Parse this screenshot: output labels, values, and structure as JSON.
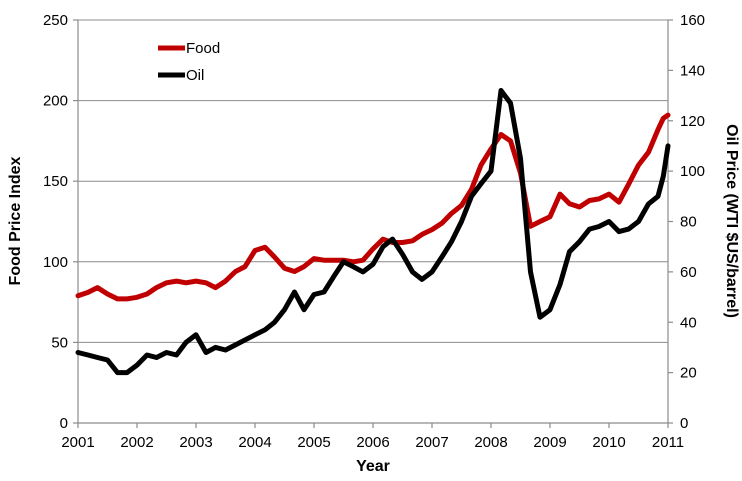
{
  "chart_data": {
    "type": "line",
    "title": "",
    "xlabel": "Year",
    "ylabel_left": "Food Price Index",
    "ylabel_right": "Oil Price (WTI $US/barrel)",
    "xlim": [
      2001,
      2011
    ],
    "ylim_left": [
      0,
      250
    ],
    "ylim_right": [
      0,
      160
    ],
    "x_ticks": [
      "2001",
      "2002",
      "2003",
      "2004",
      "2005",
      "2006",
      "2007",
      "2008",
      "2009",
      "2010",
      "2011"
    ],
    "y_ticks_left": [
      "0",
      "50",
      "100",
      "150",
      "200",
      "250"
    ],
    "y_ticks_right": [
      "0",
      "20",
      "40",
      "60",
      "80",
      "100",
      "120",
      "140",
      "160"
    ],
    "grid": "horizontal",
    "legend_position": "top-left",
    "series": [
      {
        "name": "Food",
        "axis": "left",
        "color": "#c00000",
        "points": [
          [
            2001.0,
            79
          ],
          [
            2001.17,
            81
          ],
          [
            2001.33,
            84
          ],
          [
            2001.5,
            80
          ],
          [
            2001.67,
            77
          ],
          [
            2001.83,
            77
          ],
          [
            2002.0,
            78
          ],
          [
            2002.17,
            80
          ],
          [
            2002.33,
            84
          ],
          [
            2002.5,
            87
          ],
          [
            2002.67,
            88
          ],
          [
            2002.83,
            87
          ],
          [
            2003.0,
            88
          ],
          [
            2003.17,
            87
          ],
          [
            2003.33,
            84
          ],
          [
            2003.5,
            88
          ],
          [
            2003.67,
            94
          ],
          [
            2003.83,
            97
          ],
          [
            2004.0,
            107
          ],
          [
            2004.17,
            109
          ],
          [
            2004.33,
            103
          ],
          [
            2004.5,
            96
          ],
          [
            2004.67,
            94
          ],
          [
            2004.83,
            97
          ],
          [
            2005.0,
            102
          ],
          [
            2005.17,
            101
          ],
          [
            2005.33,
            101
          ],
          [
            2005.5,
            101
          ],
          [
            2005.67,
            100
          ],
          [
            2005.83,
            101
          ],
          [
            2006.0,
            108
          ],
          [
            2006.17,
            114
          ],
          [
            2006.33,
            112
          ],
          [
            2006.5,
            112
          ],
          [
            2006.67,
            113
          ],
          [
            2006.83,
            117
          ],
          [
            2007.0,
            120
          ],
          [
            2007.17,
            124
          ],
          [
            2007.33,
            130
          ],
          [
            2007.5,
            135
          ],
          [
            2007.67,
            145
          ],
          [
            2007.83,
            160
          ],
          [
            2008.0,
            170
          ],
          [
            2008.17,
            179
          ],
          [
            2008.33,
            175
          ],
          [
            2008.5,
            155
          ],
          [
            2008.67,
            122
          ],
          [
            2008.83,
            125
          ],
          [
            2009.0,
            128
          ],
          [
            2009.17,
            142
          ],
          [
            2009.33,
            136
          ],
          [
            2009.5,
            134
          ],
          [
            2009.67,
            138
          ],
          [
            2009.83,
            139
          ],
          [
            2010.0,
            142
          ],
          [
            2010.17,
            137
          ],
          [
            2010.33,
            148
          ],
          [
            2010.5,
            160
          ],
          [
            2010.67,
            168
          ],
          [
            2010.83,
            182
          ],
          [
            2010.92,
            189
          ],
          [
            2011.0,
            191
          ]
        ]
      },
      {
        "name": "Oil",
        "axis": "right",
        "color": "#000000",
        "points": [
          [
            2001.0,
            28
          ],
          [
            2001.17,
            27
          ],
          [
            2001.33,
            26
          ],
          [
            2001.5,
            25
          ],
          [
            2001.67,
            20
          ],
          [
            2001.83,
            20
          ],
          [
            2002.0,
            23
          ],
          [
            2002.17,
            27
          ],
          [
            2002.33,
            26
          ],
          [
            2002.5,
            28
          ],
          [
            2002.67,
            27
          ],
          [
            2002.83,
            32
          ],
          [
            2003.0,
            35
          ],
          [
            2003.17,
            28
          ],
          [
            2003.33,
            30
          ],
          [
            2003.5,
            29
          ],
          [
            2003.67,
            31
          ],
          [
            2003.83,
            33
          ],
          [
            2004.0,
            35
          ],
          [
            2004.17,
            37
          ],
          [
            2004.33,
            40
          ],
          [
            2004.5,
            45
          ],
          [
            2004.67,
            52
          ],
          [
            2004.83,
            45
          ],
          [
            2005.0,
            51
          ],
          [
            2005.17,
            52
          ],
          [
            2005.33,
            58
          ],
          [
            2005.5,
            64
          ],
          [
            2005.67,
            62
          ],
          [
            2005.83,
            60
          ],
          [
            2006.0,
            63
          ],
          [
            2006.17,
            70
          ],
          [
            2006.33,
            73
          ],
          [
            2006.5,
            67
          ],
          [
            2006.67,
            60
          ],
          [
            2006.83,
            57
          ],
          [
            2007.0,
            60
          ],
          [
            2007.17,
            66
          ],
          [
            2007.33,
            72
          ],
          [
            2007.5,
            80
          ],
          [
            2007.67,
            90
          ],
          [
            2007.83,
            95
          ],
          [
            2008.0,
            100
          ],
          [
            2008.17,
            132
          ],
          [
            2008.33,
            127
          ],
          [
            2008.5,
            105
          ],
          [
            2008.67,
            60
          ],
          [
            2008.83,
            42
          ],
          [
            2009.0,
            45
          ],
          [
            2009.17,
            55
          ],
          [
            2009.33,
            68
          ],
          [
            2009.5,
            72
          ],
          [
            2009.67,
            77
          ],
          [
            2009.83,
            78
          ],
          [
            2010.0,
            80
          ],
          [
            2010.17,
            76
          ],
          [
            2010.33,
            77
          ],
          [
            2010.5,
            80
          ],
          [
            2010.67,
            87
          ],
          [
            2010.83,
            90
          ],
          [
            2010.92,
            98
          ],
          [
            2011.0,
            110
          ]
        ]
      }
    ]
  }
}
